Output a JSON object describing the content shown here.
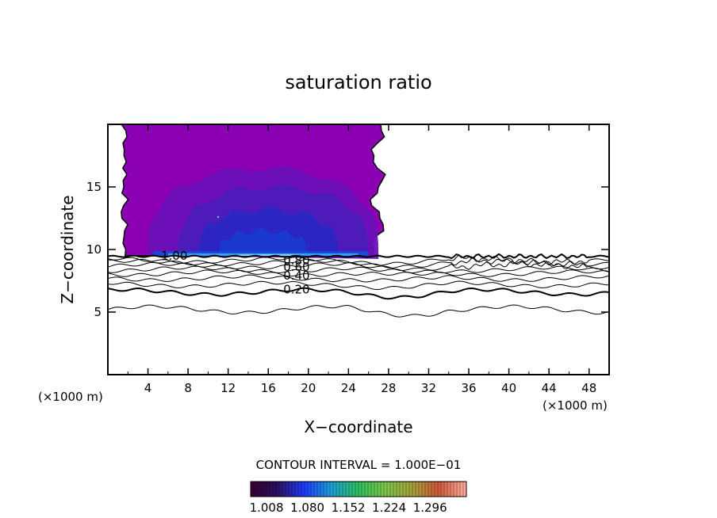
{
  "chart_data": {
    "type": "contour",
    "title": "saturation ratio",
    "xlabel": "X−coordinate",
    "ylabel": "Z−coordinate",
    "x_unit_left": "(×1000 m)",
    "x_unit_right": "(×1000 m)",
    "xlim": [
      0,
      50
    ],
    "ylim": [
      0,
      20
    ],
    "xticks": [
      4,
      8,
      12,
      16,
      20,
      24,
      28,
      32,
      36,
      40,
      44,
      48
    ],
    "yticks": [
      5,
      10,
      15
    ],
    "xtick_labels": [
      "4",
      "8",
      "12",
      "16",
      "20",
      "24",
      "28",
      "32",
      "36",
      "40",
      "44",
      "48"
    ],
    "ytick_labels": [
      "5",
      "10",
      "15"
    ],
    "contour_interval_text": "CONTOUR INTERVAL = 1.000E−01",
    "colorbar_labels": [
      "1.008",
      "1.080",
      "1.152",
      "1.224",
      "1.296"
    ],
    "colorbar_range": [
      0.98,
      1.36
    ],
    "contour_labels": [
      {
        "text": "1.00",
        "x": 5.3,
        "z": 9.5
      },
      {
        "text": "0.80",
        "x": 17.5,
        "z": 9.1
      },
      {
        "text": "0.60",
        "x": 17.5,
        "z": 8.6
      },
      {
        "text": "0.40",
        "x": 17.5,
        "z": 7.9
      },
      {
        "text": "0.20",
        "x": 17.5,
        "z": 6.8
      }
    ],
    "contour_lines": [
      {
        "level": 0.1,
        "bold": false,
        "base": 5.2,
        "amp": 0.25
      },
      {
        "level": 0.2,
        "bold": true,
        "base": 6.6,
        "amp": 0.2
      },
      {
        "level": 0.3,
        "bold": false,
        "base": 7.2,
        "amp": 0.15
      },
      {
        "level": 0.4,
        "bold": false,
        "base": 7.7,
        "amp": 0.15
      },
      {
        "level": 0.5,
        "bold": false,
        "base": 8.1,
        "amp": 0.15
      },
      {
        "level": 0.6,
        "bold": false,
        "base": 8.4,
        "amp": 0.15
      },
      {
        "level": 0.7,
        "bold": false,
        "base": 8.7,
        "amp": 0.15
      },
      {
        "level": 0.8,
        "bold": false,
        "base": 8.95,
        "amp": 0.15
      },
      {
        "level": 0.9,
        "bold": false,
        "base": 9.15,
        "amp": 0.15
      }
    ],
    "supersaturated_region": {
      "x_left": 1.3,
      "x_right": 27.5,
      "z_bottom": 9.5,
      "z_top": 20,
      "background_value": 1.02,
      "colors": [
        "#8a00b2",
        "#6a10b8",
        "#4d1cba",
        "#2b26c2",
        "#1a3ad0",
        "#3aa0ff"
      ]
    },
    "grid": false
  }
}
